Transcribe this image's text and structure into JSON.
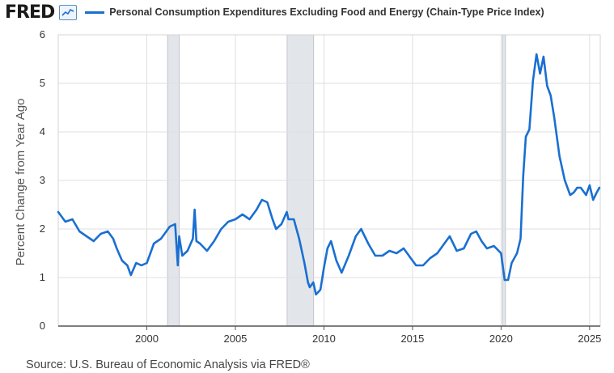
{
  "header": {
    "logo_text": "FRED",
    "logo_icon": "line-chart-icon",
    "legend_label": "Personal Consumption Expenditures Excluding Food and Energy (Chain-Type Price Index)"
  },
  "footer": {
    "source": "Source: U.S. Bureau of Economic Analysis via FRED®"
  },
  "colors": {
    "series": "#1a6fd1",
    "recession": "#e2e5ea",
    "grid": "#dfdfdf"
  },
  "chart_data": {
    "type": "line",
    "title": "",
    "xlabel": "",
    "ylabel": "Percent Change from Year Ago",
    "xlim": [
      1995.0,
      2025.6
    ],
    "ylim": [
      0,
      6
    ],
    "x_ticks": [
      "2000",
      "2005",
      "2010",
      "2015",
      "2020",
      "2025"
    ],
    "y_ticks": [
      "0",
      "1",
      "2",
      "3",
      "4",
      "5",
      "6"
    ],
    "grid": true,
    "recessions": [
      {
        "start": 2001.17,
        "end": 2001.83
      },
      {
        "start": 2007.92,
        "end": 2009.42
      },
      {
        "start": 2020.08,
        "end": 2020.25
      }
    ],
    "series": [
      {
        "name": "Personal Consumption Expenditures Excluding Food and Energy (Chain-Type Price Index)",
        "x": [
          1995.0,
          1995.4,
          1995.8,
          1996.2,
          1996.6,
          1997.0,
          1997.4,
          1997.8,
          1998.1,
          1998.3,
          1998.6,
          1998.9,
          1999.1,
          1999.4,
          1999.7,
          2000.0,
          2000.2,
          2000.4,
          2000.8,
          2001.0,
          2001.3,
          2001.6,
          2001.75,
          2001.83,
          2002.0,
          2002.3,
          2002.6,
          2002.7,
          2002.8,
          2003.0,
          2003.4,
          2003.8,
          2004.2,
          2004.6,
          2005.0,
          2005.4,
          2005.8,
          2006.2,
          2006.5,
          2006.8,
          2007.1,
          2007.3,
          2007.6,
          2007.9,
          2008.0,
          2008.3,
          2008.6,
          2008.9,
          2009.1,
          2009.2,
          2009.4,
          2009.55,
          2009.8,
          2010.0,
          2010.2,
          2010.4,
          2010.7,
          2011.0,
          2011.4,
          2011.8,
          2012.1,
          2012.5,
          2012.9,
          2013.3,
          2013.7,
          2014.1,
          2014.5,
          2014.9,
          2015.2,
          2015.6,
          2016.0,
          2016.4,
          2016.8,
          2017.1,
          2017.5,
          2017.9,
          2018.3,
          2018.6,
          2018.9,
          2019.2,
          2019.6,
          2020.0,
          2020.2,
          2020.4,
          2020.6,
          2020.9,
          2021.1,
          2021.25,
          2021.4,
          2021.6,
          2021.8,
          2022.0,
          2022.2,
          2022.4,
          2022.6,
          2022.8,
          2023.0,
          2023.3,
          2023.6,
          2023.9,
          2024.1,
          2024.3,
          2024.5,
          2024.8,
          2025.0,
          2025.2,
          2025.4,
          2025.55
        ],
        "values": [
          2.35,
          2.15,
          2.2,
          1.95,
          1.85,
          1.75,
          1.9,
          1.95,
          1.8,
          1.6,
          1.35,
          1.25,
          1.05,
          1.3,
          1.25,
          1.3,
          1.5,
          1.7,
          1.8,
          1.9,
          2.05,
          2.1,
          1.25,
          1.85,
          1.45,
          1.55,
          1.8,
          2.4,
          1.75,
          1.7,
          1.55,
          1.75,
          2.0,
          2.15,
          2.2,
          2.3,
          2.2,
          2.4,
          2.6,
          2.55,
          2.2,
          2.0,
          2.1,
          2.35,
          2.2,
          2.2,
          1.8,
          1.3,
          0.9,
          0.8,
          0.9,
          0.65,
          0.75,
          1.2,
          1.6,
          1.75,
          1.35,
          1.1,
          1.45,
          1.85,
          2.0,
          1.7,
          1.45,
          1.45,
          1.55,
          1.5,
          1.6,
          1.4,
          1.25,
          1.25,
          1.4,
          1.5,
          1.7,
          1.85,
          1.55,
          1.6,
          1.9,
          1.95,
          1.75,
          1.6,
          1.65,
          1.5,
          0.95,
          0.95,
          1.3,
          1.5,
          1.8,
          3.1,
          3.9,
          4.05,
          5.05,
          5.6,
          5.2,
          5.55,
          4.95,
          4.75,
          4.3,
          3.5,
          3.0,
          2.7,
          2.75,
          2.85,
          2.85,
          2.7,
          2.9,
          2.6,
          2.75,
          2.85
        ]
      }
    ]
  }
}
